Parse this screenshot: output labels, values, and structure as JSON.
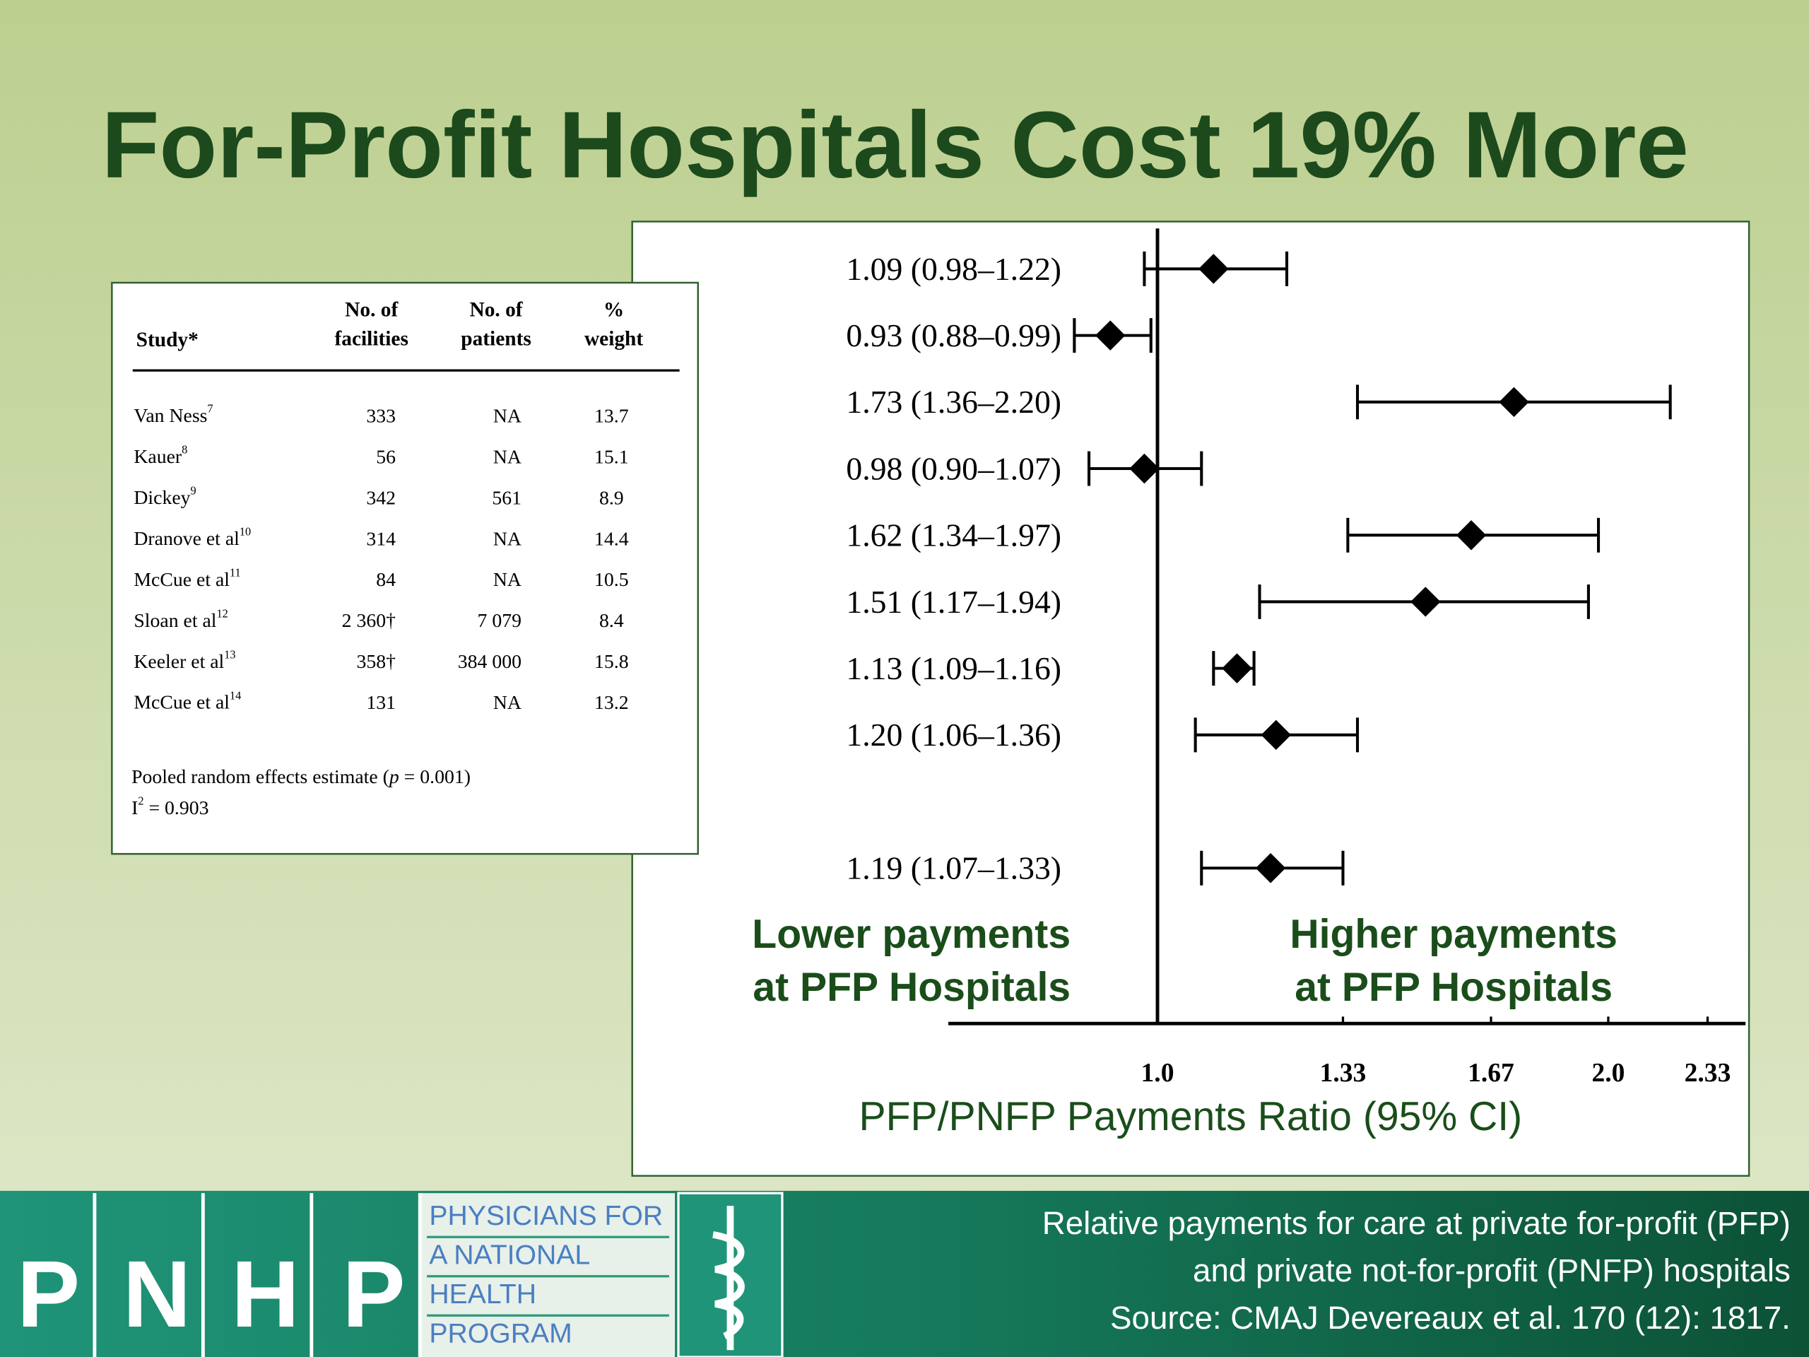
{
  "slide_title": "For-Profit Hospitals Cost 19% More",
  "table": {
    "header": {
      "study": "Study*",
      "facilities": [
        "No. of",
        "facilities"
      ],
      "patients": [
        "No. of",
        "patients"
      ],
      "weight": [
        "%",
        "weight"
      ]
    },
    "rows": [
      {
        "study": "Van Ness",
        "ref": "7",
        "facilities": 333,
        "patients": "NA",
        "weight": 13.7
      },
      {
        "study": "Kauer",
        "ref": "8",
        "facilities": 56,
        "patients": "NA",
        "weight": 15.1
      },
      {
        "study": "Dickey",
        "ref": "9",
        "facilities": 342,
        "patients": 561,
        "weight": 8.9
      },
      {
        "study": "Dranove et al",
        "ref": "10",
        "facilities": 314,
        "patients": "NA",
        "weight": 14.4
      },
      {
        "study": "McCue et al",
        "ref": "11",
        "facilities": 84,
        "patients": "NA",
        "weight": 10.5
      },
      {
        "study": "Sloan et al",
        "ref": "12",
        "facilities": "2 360†",
        "patients": "7 079",
        "weight": 8.4
      },
      {
        "study": "Keeler et al",
        "ref": "13",
        "facilities": "358†",
        "patients": "384 000",
        "weight": 15.8
      },
      {
        "study": "McCue et al",
        "ref": "14",
        "facilities": 131,
        "patients": "NA",
        "weight": 13.2
      }
    ],
    "footnote_pooled": [
      "Pooled random effects estimate (",
      "p",
      " = 0.001)"
    ],
    "footnote_i2": [
      "I",
      "2",
      " = 0.903"
    ]
  },
  "chart_data": {
    "type": "forest",
    "x_label": "PFP/PNFP Payments Ratio (95% CI)",
    "annotations": {
      "lower": [
        "Lower payments",
        "at PFP Hospitals"
      ],
      "higher": [
        "Higher payments",
        "at PFP Hospitals"
      ]
    },
    "values": [
      1.09,
      0.93,
      1.73,
      0.98,
      1.62,
      1.51,
      1.13,
      1.2,
      null,
      1.19
    ],
    "lower": [
      0.98,
      0.88,
      1.36,
      0.9,
      1.34,
      1.17,
      1.09,
      1.06,
      null,
      1.07
    ],
    "upper": [
      1.22,
      0.99,
      2.2,
      1.07,
      1.97,
      1.94,
      1.16,
      1.36,
      null,
      1.33
    ],
    "value_labels": [
      "1.09 (0.98–1.22)",
      "0.93 (0.88–0.99)",
      "1.73 (1.36–2.20)",
      "0.98 (0.90–1.07)",
      "1.62 (1.34–1.97)",
      "1.51 (1.17–1.94)",
      "1.13 (1.09–1.16)",
      "1.20 (1.06–1.36)",
      null,
      "1.19 (1.07–1.33)"
    ],
    "reference_line": 1,
    "xscale": "log",
    "xlim": [
      0.725,
      2.47
    ],
    "xticks": [
      {
        "value": 1,
        "label": "1.0"
      },
      1.33,
      1.67,
      {
        "value": 2,
        "label": "2.0"
      },
      2.33
    ],
    "color": "#000000",
    "annotation_color": "#1a4d1a"
  },
  "footer": {
    "logo_letters": [
      "P",
      "N",
      "H",
      "P"
    ],
    "logo_text": [
      "PHYSICIANS FOR",
      "A NATIONAL",
      "HEALTH",
      "PROGRAM"
    ],
    "caption": [
      "Relative payments for care at private for-profit (PFP)",
      "and private not-for-profit (PNFP) hospitals",
      "Source: CMAJ Devereaux et al. 170 (12): 1817."
    ]
  }
}
